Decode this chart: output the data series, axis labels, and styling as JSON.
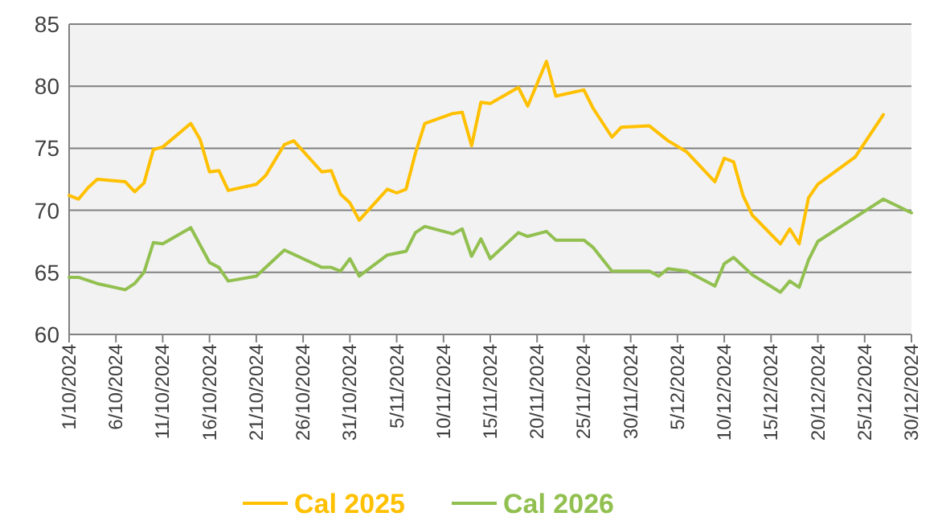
{
  "chart_data": {
    "type": "line",
    "xlim": [
      "2024-10-01",
      "2024-12-30"
    ],
    "xticks": [
      {
        "value": "2024-10-01",
        "label": "1/10/2024"
      },
      {
        "value": "2024-10-06",
        "label": "6/10/2024"
      },
      {
        "value": "2024-10-11",
        "label": "11/10/2024"
      },
      {
        "value": "2024-10-16",
        "label": "16/10/2024"
      },
      {
        "value": "2024-10-21",
        "label": "21/10/2024"
      },
      {
        "value": "2024-10-26",
        "label": "26/10/2024"
      },
      {
        "value": "2024-10-31",
        "label": "31/10/2024"
      },
      {
        "value": "2024-11-05",
        "label": "5/11/2024"
      },
      {
        "value": "2024-11-10",
        "label": "10/11/2024"
      },
      {
        "value": "2024-11-15",
        "label": "15/11/2024"
      },
      {
        "value": "2024-11-20",
        "label": "20/11/2024"
      },
      {
        "value": "2024-11-25",
        "label": "25/11/2024"
      },
      {
        "value": "2024-11-30",
        "label": "30/11/2024"
      },
      {
        "value": "2024-12-05",
        "label": "5/12/2024"
      },
      {
        "value": "2024-12-10",
        "label": "10/12/2024"
      },
      {
        "value": "2024-12-15",
        "label": "15/12/2024"
      },
      {
        "value": "2024-12-20",
        "label": "20/12/2024"
      },
      {
        "value": "2024-12-25",
        "label": "25/12/2024"
      },
      {
        "value": "2024-12-30",
        "label": "30/12/2024"
      }
    ],
    "ylim": [
      60,
      85
    ],
    "yticks": [
      60,
      65,
      70,
      75,
      80,
      85
    ],
    "grid": "y",
    "legend": "bottom",
    "marker": "none",
    "line_style": "solid",
    "series": [
      {
        "name": "Cal 2025",
        "color": "#ffc000",
        "x": [
          "2024-10-01",
          "2024-10-02",
          "2024-10-03",
          "2024-10-04",
          "2024-10-07",
          "2024-10-08",
          "2024-10-09",
          "2024-10-10",
          "2024-10-11",
          "2024-10-14",
          "2024-10-15",
          "2024-10-16",
          "2024-10-17",
          "2024-10-18",
          "2024-10-21",
          "2024-10-22",
          "2024-10-24",
          "2024-10-25",
          "2024-10-28",
          "2024-10-29",
          "2024-10-30",
          "2024-10-31",
          "2024-11-01",
          "2024-11-04",
          "2024-11-05",
          "2024-11-06",
          "2024-11-07",
          "2024-11-08",
          "2024-11-11",
          "2024-11-12",
          "2024-11-13",
          "2024-11-14",
          "2024-11-15",
          "2024-11-18",
          "2024-11-19",
          "2024-11-21",
          "2024-11-22",
          "2024-11-25",
          "2024-11-26",
          "2024-11-28",
          "2024-11-29",
          "2024-12-02",
          "2024-12-04",
          "2024-12-06",
          "2024-12-09",
          "2024-12-10",
          "2024-12-11",
          "2024-12-12",
          "2024-12-13",
          "2024-12-16",
          "2024-12-17",
          "2024-12-18",
          "2024-12-19",
          "2024-12-20",
          "2024-12-24",
          "2024-12-27"
        ],
        "values": [
          71.2,
          70.9,
          71.8,
          72.5,
          72.3,
          71.5,
          72.2,
          74.9,
          75.1,
          77.0,
          75.7,
          73.1,
          73.2,
          71.6,
          72.1,
          72.8,
          75.3,
          75.6,
          73.1,
          73.2,
          71.3,
          70.6,
          69.2,
          71.7,
          71.4,
          71.7,
          74.6,
          77.0,
          77.8,
          77.9,
          75.2,
          78.7,
          78.6,
          79.9,
          78.4,
          82.0,
          79.2,
          79.7,
          78.2,
          75.9,
          76.7,
          76.8,
          75.6,
          74.7,
          72.3,
          74.2,
          73.9,
          71.2,
          69.6,
          67.3,
          68.5,
          67.3,
          71.0,
          72.1,
          74.3,
          77.7
        ]
      },
      {
        "name": "Cal 2026",
        "color": "#92c050",
        "x": [
          "2024-10-01",
          "2024-10-02",
          "2024-10-04",
          "2024-10-07",
          "2024-10-08",
          "2024-10-09",
          "2024-10-10",
          "2024-10-11",
          "2024-10-14",
          "2024-10-16",
          "2024-10-17",
          "2024-10-18",
          "2024-10-21",
          "2024-10-24",
          "2024-10-28",
          "2024-10-29",
          "2024-10-30",
          "2024-10-31",
          "2024-11-01",
          "2024-11-04",
          "2024-11-06",
          "2024-11-07",
          "2024-11-08",
          "2024-11-11",
          "2024-11-12",
          "2024-11-13",
          "2024-11-14",
          "2024-11-15",
          "2024-11-18",
          "2024-11-19",
          "2024-11-21",
          "2024-11-22",
          "2024-11-25",
          "2024-11-26",
          "2024-11-28",
          "2024-11-29",
          "2024-12-02",
          "2024-12-03",
          "2024-12-04",
          "2024-12-06",
          "2024-12-09",
          "2024-12-10",
          "2024-12-11",
          "2024-12-13",
          "2024-12-16",
          "2024-12-17",
          "2024-12-18",
          "2024-12-19",
          "2024-12-20",
          "2024-12-27",
          "2024-12-30"
        ],
        "values": [
          64.6,
          64.6,
          64.1,
          63.6,
          64.1,
          65.0,
          67.4,
          67.3,
          68.6,
          65.8,
          65.4,
          64.3,
          64.7,
          66.8,
          65.4,
          65.4,
          65.1,
          66.1,
          64.7,
          66.4,
          66.7,
          68.2,
          68.7,
          68.1,
          68.5,
          66.3,
          67.7,
          66.1,
          68.2,
          67.9,
          68.3,
          67.6,
          67.6,
          67.0,
          65.1,
          65.1,
          65.1,
          64.7,
          65.3,
          65.1,
          63.9,
          65.7,
          66.2,
          64.8,
          63.4,
          64.3,
          63.8,
          66.0,
          67.5,
          70.9,
          69.8
        ]
      }
    ]
  }
}
